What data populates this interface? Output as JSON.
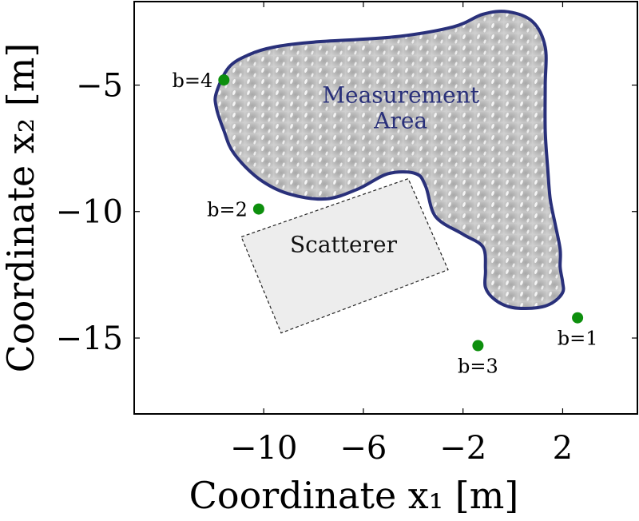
{
  "chart_data": {
    "type": "scatter",
    "xlabel": "Coordinate x₁ [m]",
    "ylabel": "Coordinate x₂ [m]",
    "xlim": [
      -15.2,
      5.0
    ],
    "ylim": [
      -18.0,
      -1.7
    ],
    "xticks": [
      -10,
      -6,
      -2,
      2
    ],
    "yticks": [
      -5,
      -10,
      -15
    ],
    "x_tick_labels": [
      "−10",
      "−6",
      "−2",
      "2"
    ],
    "y_tick_labels": [
      "−5",
      "−10",
      "−15"
    ],
    "grid": false,
    "points": [
      {
        "label": "b=4",
        "x": -11.6,
        "y": -4.8
      },
      {
        "label": "b=2",
        "x": -10.2,
        "y": -9.9
      },
      {
        "label": "b=3",
        "x": -1.4,
        "y": -15.3
      },
      {
        "label": "b=1",
        "x": 2.6,
        "y": -14.2
      }
    ],
    "regions": [
      {
        "label_lines": [
          "Measurement",
          "Area"
        ],
        "fill": "#b4b4b4",
        "outline": "#29307a",
        "label_color": "#29307a",
        "outline_xy": [
          [
            -11.9,
            -5.3
          ],
          [
            -11.4,
            -4.3
          ],
          [
            -10.6,
            -3.8
          ],
          [
            -9.6,
            -3.5
          ],
          [
            -8.0,
            -3.3
          ],
          [
            -4.8,
            -3.1
          ],
          [
            -2.4,
            -2.7
          ],
          [
            -1.2,
            -2.2
          ],
          [
            -0.2,
            -2.1
          ],
          [
            0.8,
            -2.5
          ],
          [
            1.3,
            -3.5
          ],
          [
            1.3,
            -5.0
          ],
          [
            1.3,
            -6.8
          ],
          [
            1.4,
            -8.3
          ],
          [
            1.5,
            -9.5
          ],
          [
            1.7,
            -10.5
          ],
          [
            1.9,
            -11.5
          ],
          [
            1.9,
            -12.2
          ],
          [
            2.0,
            -12.8
          ],
          [
            2.0,
            -13.2
          ],
          [
            1.6,
            -13.6
          ],
          [
            1.0,
            -13.8
          ],
          [
            0.0,
            -13.8
          ],
          [
            -0.7,
            -13.5
          ],
          [
            -1.1,
            -13.0
          ],
          [
            -1.1,
            -12.3
          ],
          [
            -1.2,
            -11.4
          ],
          [
            -2.0,
            -10.9
          ],
          [
            -3.1,
            -10.2
          ],
          [
            -3.5,
            -9.0
          ],
          [
            -3.9,
            -8.5
          ],
          [
            -5.0,
            -8.5
          ],
          [
            -6.2,
            -9.1
          ],
          [
            -7.5,
            -9.5
          ],
          [
            -9.0,
            -9.3
          ],
          [
            -10.2,
            -8.7
          ],
          [
            -11.2,
            -7.7
          ],
          [
            -11.6,
            -6.8
          ],
          [
            -11.9,
            -5.9
          ]
        ]
      },
      {
        "label_lines": [
          "Scatterer"
        ],
        "fill": "#ededed",
        "outline": "#222222",
        "label_color": "#111111",
        "outline_xy": [
          [
            -10.9,
            -11.0
          ],
          [
            -4.2,
            -8.7
          ],
          [
            -2.6,
            -12.3
          ],
          [
            -9.3,
            -14.8
          ]
        ]
      }
    ]
  },
  "colors": {
    "point": "#0d8f0d",
    "axis": "#000000"
  }
}
